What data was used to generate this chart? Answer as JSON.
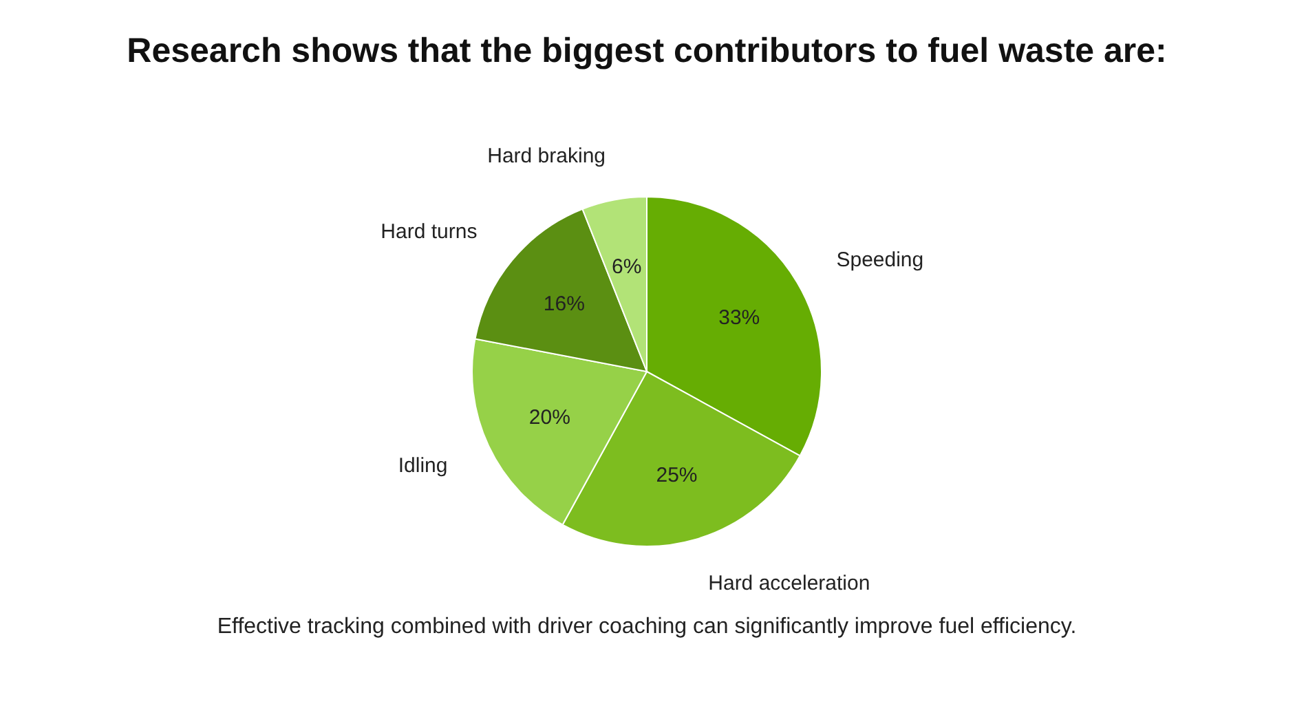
{
  "chart_data": {
    "type": "pie",
    "title": "Research shows that the biggest contributors to fuel waste are:",
    "categories": [
      "Speeding",
      "Hard acceleration",
      "Idling",
      "Hard turns",
      "Hard braking"
    ],
    "values": [
      33,
      25,
      20,
      16,
      6
    ],
    "value_labels": [
      "33%",
      "25%",
      "20%",
      "16%",
      "6%"
    ],
    "colors": [
      "#66ad03",
      "#7dbd1f",
      "#96d148",
      "#5b8f12",
      "#b2e377"
    ],
    "annotations": [
      "Effective tracking combined with driver coaching can significantly improve fuel efficiency."
    ]
  }
}
